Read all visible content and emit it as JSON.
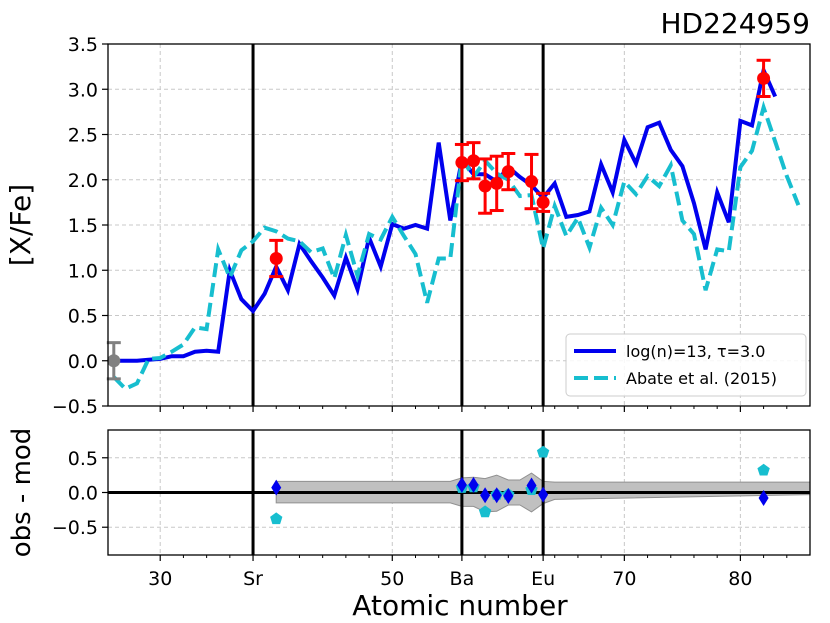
{
  "chart_data": {
    "type": "line",
    "title": "HD224959",
    "xlabel": "Atomic number",
    "xlim": [
      25.5,
      86
    ],
    "xticks": [
      {
        "x": 30,
        "label": "30"
      },
      {
        "x": 38,
        "label": "Sr"
      },
      {
        "x": 50,
        "label": "50"
      },
      {
        "x": 56,
        "label": "Ba"
      },
      {
        "x": 63,
        "label": "Eu"
      },
      {
        "x": 70,
        "label": "70"
      },
      {
        "x": 80,
        "label": "80"
      }
    ],
    "xminor": [
      32,
      34,
      36,
      40,
      42,
      44,
      46,
      48,
      52,
      54,
      58,
      60,
      62,
      64,
      66,
      68,
      72,
      74,
      76,
      78,
      82,
      84
    ],
    "vlines": [
      38,
      56,
      63
    ],
    "grid": true,
    "legend_position": "lower-right",
    "top_panel": {
      "ylabel": "[X/Fe]",
      "ylim": [
        -0.5,
        3.5
      ],
      "yticks": [
        "−0.5",
        "0.0",
        "0.5",
        "1.0",
        "1.5",
        "2.0",
        "2.5",
        "3.0",
        "3.5"
      ],
      "series": [
        {
          "name": "log(n)=13, τ=3.0",
          "color": "#0000ee",
          "style": "solid",
          "points": [
            [
              26,
              0.0
            ],
            [
              27,
              0.0
            ],
            [
              28,
              0.0
            ],
            [
              29,
              0.01
            ],
            [
              30,
              0.02
            ],
            [
              31,
              0.05
            ],
            [
              32,
              0.05
            ],
            [
              33,
              0.1
            ],
            [
              34,
              0.11
            ],
            [
              35,
              0.1
            ],
            [
              36,
              1.0
            ],
            [
              37,
              0.68
            ],
            [
              38,
              0.55
            ],
            [
              39,
              0.74
            ],
            [
              40,
              1.04
            ],
            [
              41,
              0.78
            ],
            [
              42,
              1.29
            ],
            [
              43,
              1.1
            ],
            [
              44,
              0.92
            ],
            [
              45,
              0.72
            ],
            [
              46,
              1.14
            ],
            [
              47,
              0.79
            ],
            [
              48,
              1.36
            ],
            [
              49,
              1.04
            ],
            [
              50,
              1.51
            ],
            [
              51,
              1.46
            ],
            [
              52,
              1.5
            ],
            [
              53,
              1.46
            ],
            [
              54,
              2.41
            ],
            [
              55,
              1.55
            ],
            [
              56,
              2.22
            ],
            [
              57,
              2.06
            ],
            [
              58,
              2.06
            ],
            [
              59,
              1.98
            ],
            [
              60,
              2.14
            ],
            [
              61,
              2.03
            ],
            [
              62,
              1.94
            ],
            [
              63,
              1.8
            ],
            [
              64,
              1.96
            ],
            [
              65,
              1.59
            ],
            [
              66,
              1.61
            ],
            [
              67,
              1.65
            ],
            [
              68,
              2.17
            ],
            [
              69,
              1.86
            ],
            [
              70,
              2.44
            ],
            [
              71,
              2.18
            ],
            [
              72,
              2.58
            ],
            [
              73,
              2.63
            ],
            [
              74,
              2.33
            ],
            [
              75,
              2.15
            ],
            [
              76,
              1.74
            ],
            [
              77,
              1.23
            ],
            [
              78,
              1.86
            ],
            [
              79,
              1.53
            ],
            [
              80,
              2.65
            ],
            [
              81,
              2.6
            ],
            [
              82,
              3.21
            ],
            [
              83,
              2.92
            ]
          ]
        },
        {
          "name": "Abate et al. (2015)",
          "color": "#17becf",
          "style": "dashed",
          "points": [
            [
              26,
              -0.18
            ],
            [
              27,
              -0.31
            ],
            [
              28,
              -0.25
            ],
            [
              29,
              0.02
            ],
            [
              30,
              0.03
            ],
            [
              31,
              0.1
            ],
            [
              32,
              0.18
            ],
            [
              33,
              0.37
            ],
            [
              34,
              0.35
            ],
            [
              35,
              1.23
            ],
            [
              36,
              0.92
            ],
            [
              37,
              1.22
            ],
            [
              38,
              1.32
            ],
            [
              39,
              1.47
            ],
            [
              40,
              1.43
            ],
            [
              41,
              1.35
            ],
            [
              42,
              1.32
            ],
            [
              43,
              1.2
            ],
            [
              44,
              1.24
            ],
            [
              45,
              0.91
            ],
            [
              46,
              1.39
            ],
            [
              47,
              0.94
            ],
            [
              48,
              1.4
            ],
            [
              49,
              1.34
            ],
            [
              50,
              1.59
            ],
            [
              51,
              1.38
            ],
            [
              52,
              1.18
            ],
            [
              53,
              0.64
            ],
            [
              54,
              1.13
            ],
            [
              55,
              1.13
            ],
            [
              56,
              2.24
            ],
            [
              57,
              2.03
            ],
            [
              58,
              2.21
            ],
            [
              59,
              2.07
            ],
            [
              60,
              2.0
            ],
            [
              61,
              1.82
            ],
            [
              62,
              1.83
            ],
            [
              63,
              1.24
            ],
            [
              64,
              1.71
            ],
            [
              65,
              1.38
            ],
            [
              66,
              1.58
            ],
            [
              67,
              1.25
            ],
            [
              68,
              1.69
            ],
            [
              69,
              1.5
            ],
            [
              70,
              1.98
            ],
            [
              71,
              1.84
            ],
            [
              72,
              2.04
            ],
            [
              73,
              1.93
            ],
            [
              74,
              2.16
            ],
            [
              75,
              1.55
            ],
            [
              76,
              1.4
            ],
            [
              77,
              0.78
            ],
            [
              78,
              1.23
            ],
            [
              79,
              1.21
            ],
            [
              80,
              2.14
            ],
            [
              81,
              2.32
            ],
            [
              82,
              2.8
            ],
            [
              83,
              2.42
            ],
            [
              84,
              2.04
            ],
            [
              85,
              1.72
            ]
          ]
        }
      ],
      "observations_red": [
        {
          "x": 40,
          "y": 1.13,
          "err": 0.2
        },
        {
          "x": 56,
          "y": 2.19,
          "err": 0.2
        },
        {
          "x": 57,
          "y": 2.21,
          "err": 0.2
        },
        {
          "x": 58,
          "y": 1.93,
          "err": 0.3
        },
        {
          "x": 59,
          "y": 1.96,
          "err": 0.3
        },
        {
          "x": 60,
          "y": 2.09,
          "err": 0.2
        },
        {
          "x": 62,
          "y": 1.98,
          "err": 0.3
        },
        {
          "x": 63,
          "y": 1.75,
          "err": 0.1
        },
        {
          "x": 82,
          "y": 3.12,
          "err": 0.2
        }
      ],
      "observations_gray": [
        {
          "x": 26,
          "y": 0.0,
          "err": 0.2
        }
      ]
    },
    "bottom_panel": {
      "ylabel": "obs - mod",
      "ylim": [
        -0.9,
        0.9
      ],
      "yticks": [
        "−0.5",
        "0.0",
        "0.5"
      ],
      "residuals_model": [
        [
          40,
          0.07
        ],
        [
          56,
          0.11
        ],
        [
          57,
          0.11
        ],
        [
          58,
          -0.04
        ],
        [
          59,
          -0.04
        ],
        [
          60,
          -0.05
        ],
        [
          62,
          0.1
        ],
        [
          63,
          -0.03
        ],
        [
          82,
          -0.08
        ]
      ],
      "residuals_abate": [
        [
          40,
          -0.38
        ],
        [
          56,
          0.07
        ],
        [
          57,
          0.08
        ],
        [
          58,
          -0.28
        ],
        [
          59,
          -0.03
        ],
        [
          60,
          -0.03
        ],
        [
          62,
          0.04
        ],
        [
          63,
          0.58
        ],
        [
          82,
          0.32
        ]
      ],
      "band_upper": [
        [
          40,
          0.16
        ],
        [
          55,
          0.16
        ],
        [
          56,
          0.21
        ],
        [
          57,
          0.22
        ],
        [
          58,
          0.2
        ],
        [
          59,
          0.25
        ],
        [
          60,
          0.18
        ],
        [
          61,
          0.18
        ],
        [
          62,
          0.28
        ],
        [
          63,
          0.16
        ],
        [
          64,
          0.15
        ],
        [
          86,
          0.15
        ]
      ],
      "band_lower": [
        [
          40,
          -0.15
        ],
        [
          55,
          -0.15
        ],
        [
          56,
          -0.2
        ],
        [
          57,
          -0.2
        ],
        [
          58,
          -0.28
        ],
        [
          59,
          -0.27
        ],
        [
          60,
          -0.18
        ],
        [
          61,
          -0.18
        ],
        [
          62,
          -0.28
        ],
        [
          63,
          -0.16
        ],
        [
          64,
          -0.1
        ],
        [
          86,
          -0.03
        ]
      ],
      "colors": {
        "model": "#0000ee",
        "abate": "#17becf",
        "band": "#c0c0c0"
      }
    }
  }
}
